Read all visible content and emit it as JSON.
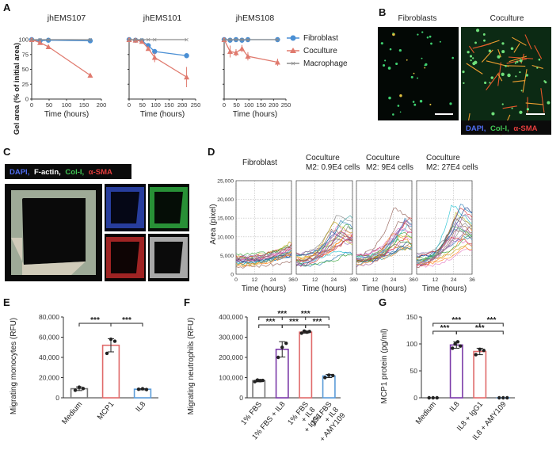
{
  "panels": {
    "A": {
      "letter": "A",
      "ylabel": "Gel area (% of initial area)",
      "xlabel": "Time (hours)",
      "legend": [
        "Fibroblast",
        "Coculture",
        "Macrophage"
      ]
    },
    "B": {
      "letter": "B",
      "images": [
        "Fibroblasts",
        "Coculture"
      ],
      "stain": [
        "DAPI,",
        "Col-I,",
        "α-SMA"
      ]
    },
    "C": {
      "letter": "C",
      "stain": [
        "DAPI,",
        "F-actin,",
        "Col-I,",
        "α-SMA"
      ]
    },
    "D": {
      "letter": "D",
      "ylabel": "Area (pixel)",
      "xlabel": "Time (hours)",
      "titles": [
        [
          "Fibroblast"
        ],
        [
          "Coculture",
          "M2: 0.9E4 cells"
        ],
        [
          "Coculture",
          "M2: 9E4 cells"
        ],
        [
          "Coculture",
          "M2: 27E4 cells"
        ]
      ]
    },
    "E": {
      "letter": "E",
      "ylabel": "Migrating monocytes (RFU)"
    },
    "F": {
      "letter": "F",
      "ylabel": "Migrating neutrophils (RFU)"
    },
    "G": {
      "letter": "G",
      "ylabel": "MCP1 protein (pg/ml)"
    }
  },
  "colors": {
    "fibroblast": "#4a8fd4",
    "coculture": "#e07a6e",
    "macrophage": "#8c8c8c",
    "purple": "#7b3aa8",
    "red": "#e06a6a",
    "blue": "#5a9bd8",
    "gray": "#777777"
  },
  "chart_data": [
    {
      "type": "line",
      "title": "jhEMS107",
      "xlabel": "Time (hours)",
      "ylabel": "Gel area (% of initial area)",
      "xlim": [
        0,
        200
      ],
      "ylim": [
        0,
        100
      ],
      "xticks": [
        0,
        50,
        100,
        150,
        200
      ],
      "yticks": [
        0,
        25,
        50,
        75,
        100
      ],
      "series": [
        {
          "name": "Fibroblast",
          "x": [
            0,
            24,
            48,
            168
          ],
          "y": [
            100,
            98,
            99,
            98
          ]
        },
        {
          "name": "Coculture",
          "x": [
            0,
            24,
            48,
            168
          ],
          "y": [
            100,
            95,
            88,
            40
          ]
        },
        {
          "name": "Macrophage",
          "x": [
            0,
            24,
            48,
            168
          ],
          "y": [
            100,
            100,
            100,
            100
          ]
        }
      ]
    },
    {
      "type": "line",
      "title": "jhEMS101",
      "xlabel": "Time (hours)",
      "xlim": [
        0,
        250
      ],
      "ylim": [
        0,
        100
      ],
      "xticks": [
        0,
        50,
        100,
        150,
        200,
        250
      ],
      "yticks": [
        0,
        25,
        50,
        75,
        100
      ],
      "series": [
        {
          "name": "Fibroblast",
          "x": [
            0,
            24,
            48,
            72,
            96,
            216
          ],
          "y": [
            100,
            99,
            98,
            90,
            80,
            73
          ]
        },
        {
          "name": "Coculture",
          "x": [
            0,
            24,
            48,
            72,
            96,
            216
          ],
          "y": [
            100,
            99,
            97,
            85,
            70,
            37
          ]
        },
        {
          "name": "Macrophage",
          "x": [
            0,
            24,
            48,
            72,
            96,
            216
          ],
          "y": [
            100,
            100,
            100,
            100,
            100,
            100
          ]
        }
      ]
    },
    {
      "type": "line",
      "title": "jhEMS108",
      "xlabel": "Time (hours)",
      "xlim": [
        0,
        250
      ],
      "ylim": [
        0,
        100
      ],
      "xticks": [
        0,
        50,
        100,
        150,
        200,
        250
      ],
      "yticks": [
        0,
        25,
        50,
        75,
        100
      ],
      "series": [
        {
          "name": "Fibroblast",
          "x": [
            0,
            24,
            48,
            72,
            96,
            216
          ],
          "y": [
            100,
            99,
            100,
            99,
            100,
            100
          ]
        },
        {
          "name": "Coculture",
          "x": [
            0,
            24,
            48,
            72,
            96,
            216
          ],
          "y": [
            100,
            80,
            78,
            85,
            72,
            62
          ]
        },
        {
          "name": "Macrophage",
          "x": [
            0,
            24,
            48,
            72,
            96,
            216
          ],
          "y": [
            100,
            100,
            100,
            100,
            100,
            100
          ]
        }
      ]
    },
    {
      "type": "bar",
      "ylim": [
        0,
        80000
      ],
      "yticks": [
        "0",
        "20,000",
        "40,000",
        "60,000",
        "80,000"
      ],
      "categories": [
        "Medium",
        "MCP1",
        "IL8"
      ],
      "values": [
        9000,
        52000,
        8500
      ],
      "significance": [
        [
          "Medium",
          "MCP1",
          "***"
        ],
        [
          "MCP1",
          "IL8",
          "***"
        ]
      ]
    },
    {
      "type": "bar",
      "ylim": [
        0,
        400000
      ],
      "yticks": [
        "0",
        "100,000",
        "200,000",
        "300,000",
        "400,000"
      ],
      "categories": [
        "1% FBS",
        "1% FBS + IL8",
        "1% FBS + IL8 + IgG1",
        "1% FBS + IL8 + AMY109"
      ],
      "values": [
        85000,
        240000,
        325000,
        108000
      ],
      "significance": [
        [
          "1% FBS",
          "1% FBS + IL8",
          "***"
        ],
        [
          "1% FBS",
          "1% FBS + IL8 + IgG1",
          "***"
        ],
        [
          "1% FBS + IL8",
          "1% FBS + IL8 + IgG1",
          "***"
        ],
        [
          "1% FBS + IL8",
          "1% FBS + IL8 + AMY109",
          "***"
        ],
        [
          "1% FBS + IL8 + IgG1",
          "1% FBS + IL8 + AMY109",
          "***"
        ]
      ]
    },
    {
      "type": "bar",
      "ylim": [
        0,
        150
      ],
      "yticks": [
        "0",
        "50",
        "100",
        "150"
      ],
      "categories": [
        "Medium",
        "IL8",
        "IL8 + IgG1",
        "IL8 + AMY109"
      ],
      "values": [
        0,
        98,
        86,
        0
      ],
      "significance": [
        [
          "Medium",
          "IL8",
          "***"
        ],
        [
          "Medium",
          "IL8 + IgG1",
          "***"
        ],
        [
          "IL8",
          "IL8 + AMY109",
          "***"
        ],
        [
          "IL8 + IgG1",
          "IL8 + AMY109",
          "***"
        ]
      ]
    }
  ]
}
